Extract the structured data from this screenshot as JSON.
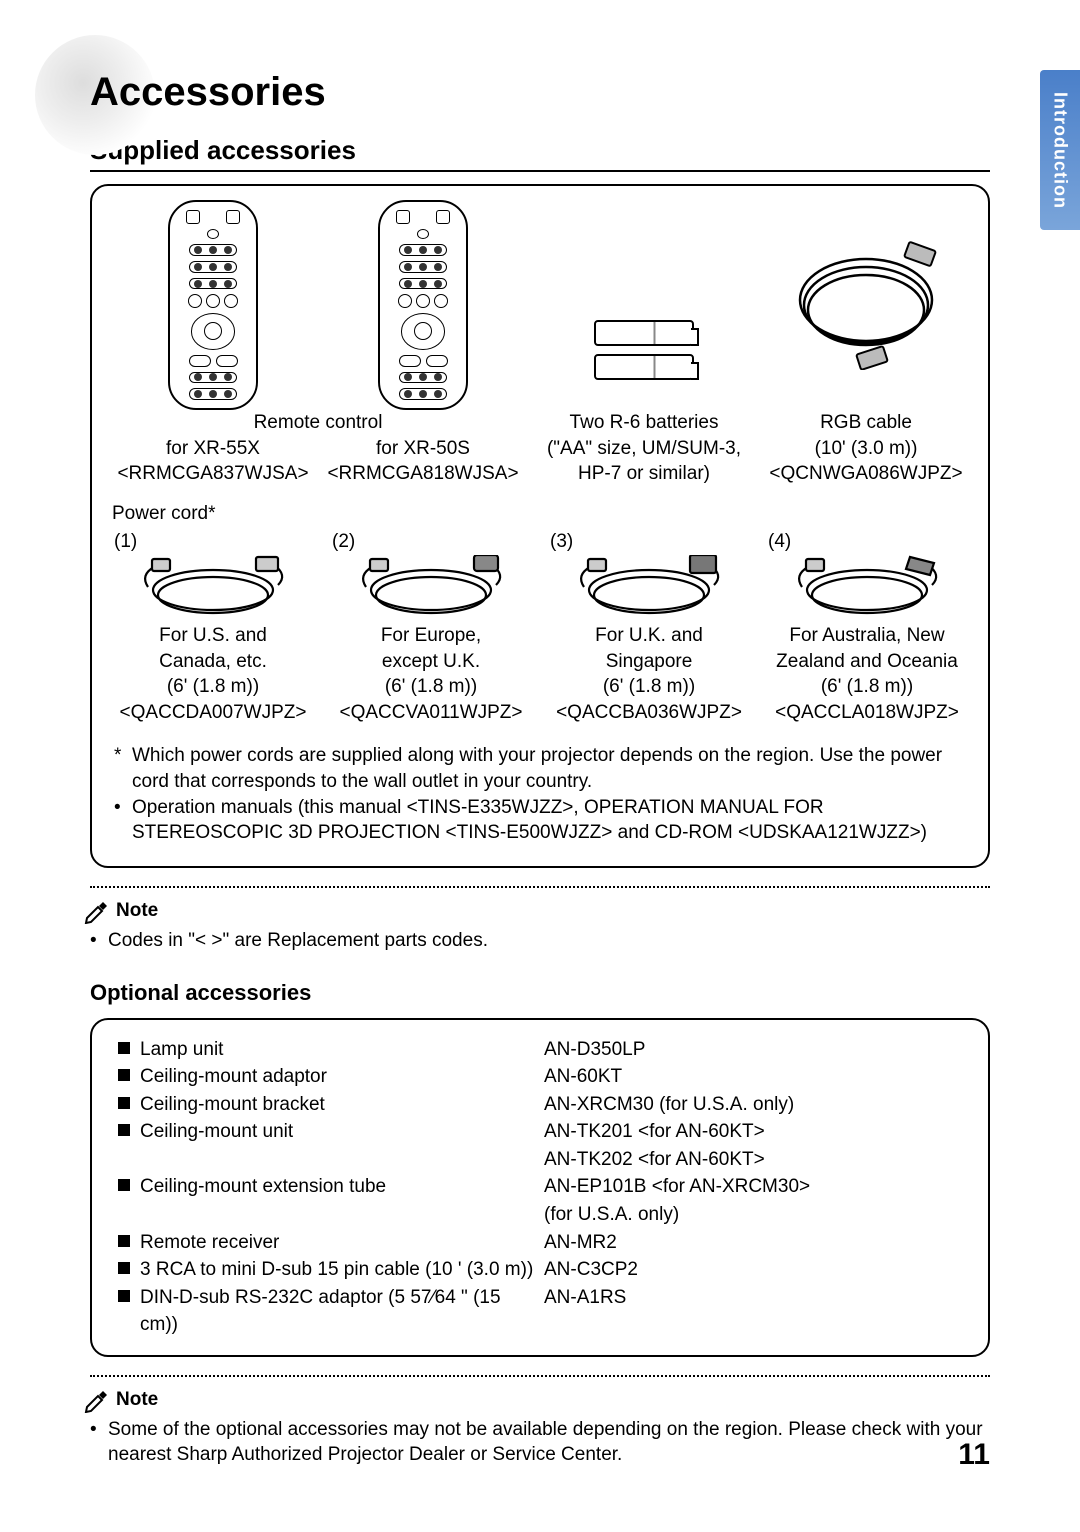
{
  "tab_label": "Introduction",
  "title": "Accessories",
  "supplied_heading": "Supplied accessories",
  "remote": {
    "caption_main": "Remote control",
    "left": {
      "for": "for XR-55X",
      "code": "<RRMCGA837WJSA>"
    },
    "right": {
      "for": "for XR-50S",
      "code": "<RRMCGA818WJSA>"
    }
  },
  "batteries": {
    "line1": "Two R-6 batteries",
    "line2": "(\"AA\" size, UM/SUM-3,",
    "line3": "HP-7 or similar)"
  },
  "rgb": {
    "line1": "RGB cable",
    "line2": "(10' (3.0 m))",
    "code": "<QCNWGA086WJPZ>"
  },
  "power_label": "Power cord*",
  "cords": [
    {
      "num": "(1)",
      "l1": "For U.S. and",
      "l2": "Canada, etc.",
      "len": "(6' (1.8 m))",
      "code": "<QACCDA007WJPZ>"
    },
    {
      "num": "(2)",
      "l1": "For Europe,",
      "l2": "except U.K.",
      "len": "(6' (1.8 m))",
      "code": "<QACCVA011WJPZ>"
    },
    {
      "num": "(3)",
      "l1": "For U.K. and",
      "l2": "Singapore",
      "len": "(6' (1.8 m))",
      "code": "<QACCBA036WJPZ>"
    },
    {
      "num": "(4)",
      "l1": "For Australia, New",
      "l2": "Zealand and Oceania",
      "len": "(6' (1.8 m))",
      "code": "<QACCLA018WJPZ>"
    }
  ],
  "footnote_star": "Which power cords are supplied along with your projector depends on the region. Use the power cord that corresponds to the wall outlet in your country.",
  "footnote_bullet": "Operation manuals (this manual <TINS-E335WJZZ>, OPERATION MANUAL FOR STEREOSCOPIC 3D PROJECTION <TINS-E500WJZZ> and CD-ROM <UDSKAA121WJZZ>)",
  "note_label": "Note",
  "note1": "Codes in \"< >\" are Replacement parts codes.",
  "optional_heading": "Optional accessories",
  "optional": {
    "left": [
      "Lamp unit",
      "Ceiling-mount adaptor",
      "Ceiling-mount bracket",
      "Ceiling-mount unit",
      "",
      "Ceiling-mount extension tube",
      "",
      "Remote receiver",
      "3 RCA to mini D-sub 15 pin cable (10 ' (3.0 m))",
      "DIN-D-sub RS-232C adaptor (5 57⁄64 \" (15 cm))"
    ],
    "right": [
      "AN-D350LP",
      "AN-60KT",
      "AN-XRCM30 (for U.S.A. only)",
      "AN-TK201 <for AN-60KT>",
      "AN-TK202 <for AN-60KT>",
      "AN-EP101B <for AN-XRCM30>",
      "(for U.S.A. only)",
      "AN-MR2",
      "AN-C3CP2",
      "AN-A1RS"
    ]
  },
  "note2": "Some of the optional accessories may not be available depending on the region. Please check with your nearest Sharp Authorized Projector Dealer or Service Center.",
  "page_number": "11",
  "colors": {
    "tab_bg": "#5a8cd0",
    "tab_text": "#ffffff",
    "text": "#000000"
  }
}
